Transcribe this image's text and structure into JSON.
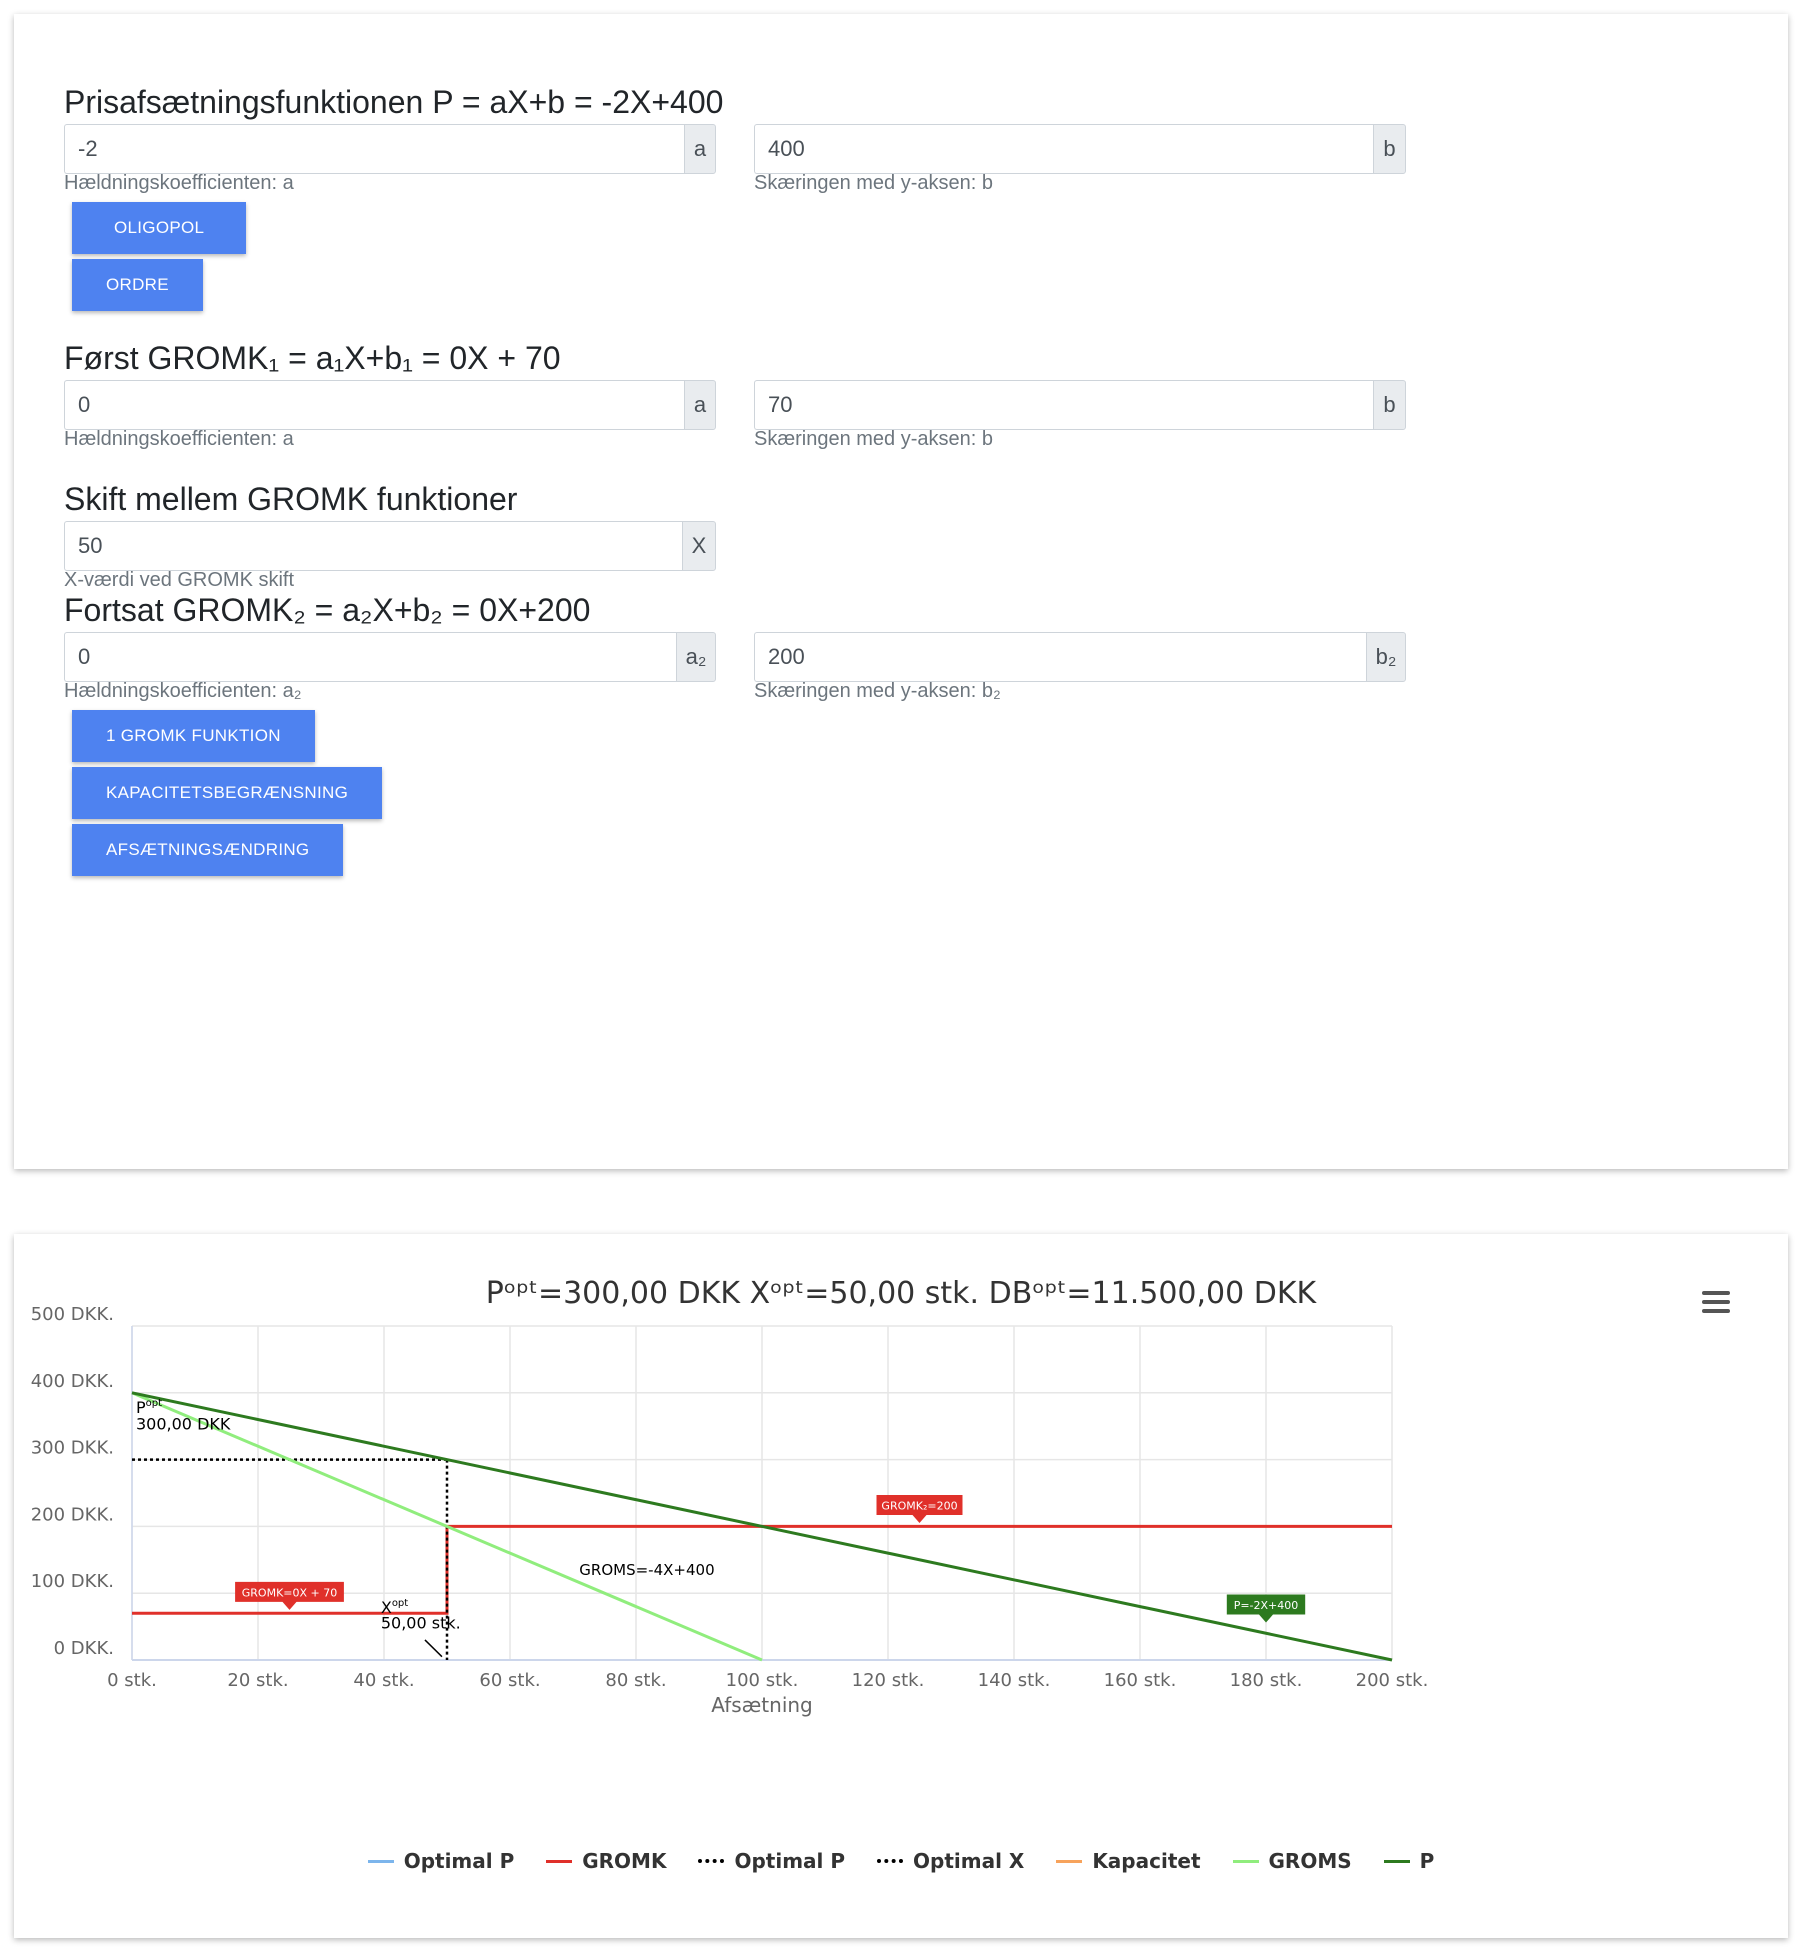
{
  "sections": {
    "price": {
      "heading": "Prisafsætningsfunktionen P = aX+b = -2X+400",
      "a_value": "-2",
      "a_addon": "a",
      "a_help": "Hældningskoefficienten: a",
      "b_value": "400",
      "b_addon": "b",
      "b_help": "Skæringen med y-aksen: b"
    },
    "buttons_top": [
      "OLIGOPOL",
      "ORDRE"
    ],
    "gromk1": {
      "heading": "Først GROMK₁ = a₁X+b₁ = 0X + 70",
      "a_value": "0",
      "a_addon": "a",
      "a_help": "Hældningskoefficienten: a",
      "b_value": "70",
      "b_addon": "b",
      "b_help": "Skæringen med y-aksen: b"
    },
    "shift": {
      "heading": "Skift mellem GROMK funktioner",
      "x_value": "50",
      "x_addon": "X",
      "x_help": "X-værdi ved GROMK skift"
    },
    "gromk2": {
      "heading": "Fortsat GROMK₂ = a₂X+b₂ = 0X+200",
      "a_value": "0",
      "a_addon": "a₂",
      "a_help": "Hældningskoefficienten: a₂",
      "b_value": "200",
      "b_addon": "b₂",
      "b_help": "Skæringen med y-aksen: b₂"
    },
    "buttons_bottom": [
      "1 GROMK FUNKTION",
      "KAPACITETSBEGRÆNSNING",
      "AFSÆTNINGSÆNDRING"
    ]
  },
  "chart": {
    "title": "Pᵒᵖᵗ=300,00 DKK Xᵒᵖᵗ=50,00 stk. DBᵒᵖᵗ=11.500,00 DKK",
    "menu_icon": "hamburger-menu-icon"
  },
  "chart_data": {
    "type": "line",
    "xlabel": "Afsætning",
    "ylabel": "",
    "xlim": [
      0,
      200
    ],
    "ylim": [
      0,
      500
    ],
    "x_ticks": [
      "0 stk.",
      "20 stk.",
      "40 stk.",
      "60 stk.",
      "80 stk.",
      "100 stk.",
      "120 stk.",
      "140 stk.",
      "160 stk.",
      "180 stk.",
      "200 stk."
    ],
    "y_ticks": [
      "0 DKK.",
      "100 DKK.",
      "200 DKK.",
      "300 DKK.",
      "400 DKK.",
      "500 DKK."
    ],
    "grid": true,
    "legend_position": "bottom-center",
    "series": [
      {
        "name": "Optimal P",
        "color": "#7cb5ec",
        "style": "solid",
        "points": []
      },
      {
        "name": "GROMK",
        "color": "#e0302a",
        "style": "solid",
        "points": [
          [
            0,
            70
          ],
          [
            50,
            70
          ],
          [
            50,
            200
          ],
          [
            200,
            200
          ]
        ]
      },
      {
        "name": "Optimal P",
        "color": "#000000",
        "style": "dotted",
        "points": [
          [
            0,
            300
          ],
          [
            50,
            300
          ]
        ]
      },
      {
        "name": "Optimal X",
        "color": "#000000",
        "style": "dotted",
        "points": [
          [
            50,
            300
          ],
          [
            50,
            0
          ]
        ]
      },
      {
        "name": "Kapacitet",
        "color": "#f7a35c",
        "style": "solid",
        "points": []
      },
      {
        "name": "GROMS",
        "color": "#90ed7d",
        "style": "solid",
        "points": [
          [
            0,
            400
          ],
          [
            100,
            0
          ]
        ]
      },
      {
        "name": "P",
        "color": "#2d7a1f",
        "style": "solid",
        "points": [
          [
            0,
            400
          ],
          [
            200,
            0
          ]
        ]
      }
    ],
    "annotations": {
      "popt_sup": "opt",
      "popt_prefix": "P",
      "popt_value": "300,00 DKK",
      "xopt_sup": "opt",
      "xopt_prefix": "X",
      "xopt_value": "50,00 stk.",
      "groms_label": "GROMS=-4X+400",
      "gromk1_label": "GROMK=0X + 70",
      "gromk2_label": "GROMK₂=200",
      "p_label": "P=-2X+400"
    }
  }
}
